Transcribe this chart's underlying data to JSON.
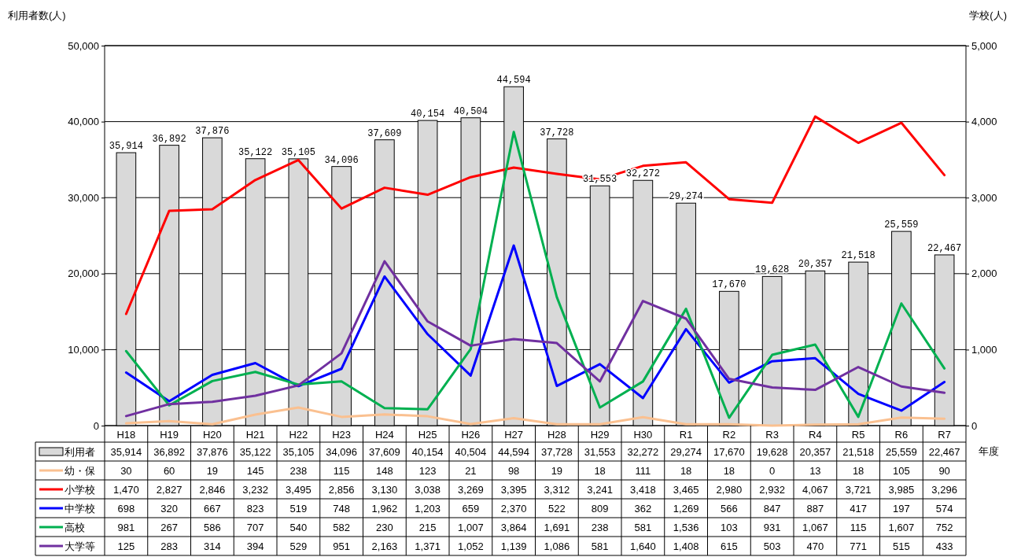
{
  "chart_data": {
    "type": "bar",
    "ylabel": "利用者数(人)",
    "y2label": "学校(人)",
    "xlabel": "年度",
    "categories": [
      "H18",
      "H19",
      "H20",
      "H21",
      "H22",
      "H23",
      "H24",
      "H25",
      "H26",
      "H27",
      "H28",
      "H29",
      "H30",
      "R1",
      "R2",
      "R3",
      "R4",
      "R5",
      "R6",
      "R7"
    ],
    "series": [
      {
        "name": "利用者",
        "color": "#d9d9d9",
        "values": [
          35914,
          36892,
          37876,
          35122,
          35105,
          34096,
          37609,
          40154,
          40504,
          44594,
          37728,
          31553,
          32272,
          29274,
          17670,
          19628,
          20357,
          21518,
          25559,
          22467
        ],
        "value_labels": [
          "35,914",
          "36,892",
          "37,876",
          "35,122",
          "35,105",
          "34,096",
          "37,609",
          "40,154",
          "40,504",
          "44,594",
          "37,728",
          "31,553",
          "32,272",
          "29,274",
          "17,670",
          "19,628",
          "20,357",
          "21,518",
          "25,559",
          "22,467"
        ]
      },
      {
        "name": "幼・保",
        "type": "line",
        "axis": "y2",
        "color": "#fac090",
        "values": [
          30,
          60,
          19,
          145,
          238,
          115,
          148,
          123,
          21,
          98,
          19,
          18,
          111,
          18,
          18,
          0,
          13,
          18,
          105,
          90
        ],
        "value_labels": [
          "30",
          "60",
          "19",
          "145",
          "238",
          "115",
          "148",
          "123",
          "21",
          "98",
          "19",
          "18",
          "111",
          "18",
          "18",
          "0",
          "13",
          "18",
          "105",
          "90"
        ]
      },
      {
        "name": "小学校",
        "type": "line",
        "axis": "y2",
        "color": "#ff0000",
        "values": [
          1470,
          2827,
          2846,
          3232,
          3495,
          2856,
          3130,
          3038,
          3269,
          3395,
          3312,
          3241,
          3418,
          3465,
          2980,
          2932,
          4067,
          3721,
          3985,
          3296
        ],
        "value_labels": [
          "1,470",
          "2,827",
          "2,846",
          "3,232",
          "3,495",
          "2,856",
          "3,130",
          "3,038",
          "3,269",
          "3,395",
          "3,312",
          "3,241",
          "3,418",
          "3,465",
          "2,980",
          "2,932",
          "4,067",
          "3,721",
          "3,985",
          "3,296"
        ]
      },
      {
        "name": "中学校",
        "type": "line",
        "axis": "y2",
        "color": "#0000ff",
        "values": [
          698,
          320,
          667,
          823,
          519,
          748,
          1962,
          1203,
          659,
          2370,
          522,
          809,
          362,
          1269,
          566,
          847,
          887,
          417,
          197,
          574
        ],
        "value_labels": [
          "698",
          "320",
          "667",
          "823",
          "519",
          "748",
          "1,962",
          "1,203",
          "659",
          "2,370",
          "522",
          "809",
          "362",
          "1,269",
          "566",
          "847",
          "887",
          "417",
          "197",
          "574"
        ]
      },
      {
        "name": "高校",
        "type": "line",
        "axis": "y2",
        "color": "#00b050",
        "values": [
          981,
          267,
          586,
          707,
          540,
          582,
          230,
          215,
          1007,
          3864,
          1691,
          238,
          581,
          1536,
          103,
          931,
          1067,
          115,
          1607,
          752
        ],
        "value_labels": [
          "981",
          "267",
          "586",
          "707",
          "540",
          "582",
          "230",
          "215",
          "1,007",
          "3,864",
          "1,691",
          "238",
          "581",
          "1,536",
          "103",
          "931",
          "1,067",
          "115",
          "1,607",
          "752"
        ]
      },
      {
        "name": "大学等",
        "type": "line",
        "axis": "y2",
        "color": "#7030a0",
        "values": [
          125,
          283,
          314,
          394,
          529,
          951,
          2163,
          1371,
          1052,
          1139,
          1086,
          581,
          1640,
          1408,
          615,
          503,
          470,
          771,
          515,
          433
        ],
        "value_labels": [
          "125",
          "283",
          "314",
          "394",
          "529",
          "951",
          "2,163",
          "1,371",
          "1,052",
          "1,139",
          "1,086",
          "581",
          "1,640",
          "1,408",
          "615",
          "503",
          "470",
          "771",
          "515",
          "433"
        ]
      }
    ],
    "ylim": [
      0,
      50000
    ],
    "yticks": [
      {
        "value": 0,
        "label": "0"
      },
      {
        "value": 10000,
        "label": "10,000"
      },
      {
        "value": 20000,
        "label": "20,000"
      },
      {
        "value": 30000,
        "label": "30,000"
      },
      {
        "value": 40000,
        "label": "40,000"
      },
      {
        "value": 50000,
        "label": "50,000"
      }
    ],
    "y2lim": [
      0,
      5000
    ],
    "y2ticks": [
      {
        "value": 0,
        "label": "0"
      },
      {
        "value": 1000,
        "label": "1,000"
      },
      {
        "value": 2000,
        "label": "2,000"
      },
      {
        "value": 3000,
        "label": "3,000"
      },
      {
        "value": 4000,
        "label": "4,000"
      },
      {
        "value": 5000,
        "label": "5,000"
      }
    ],
    "grid": "y",
    "legend": "bottom",
    "marker": "none",
    "line_style": "solid"
  }
}
